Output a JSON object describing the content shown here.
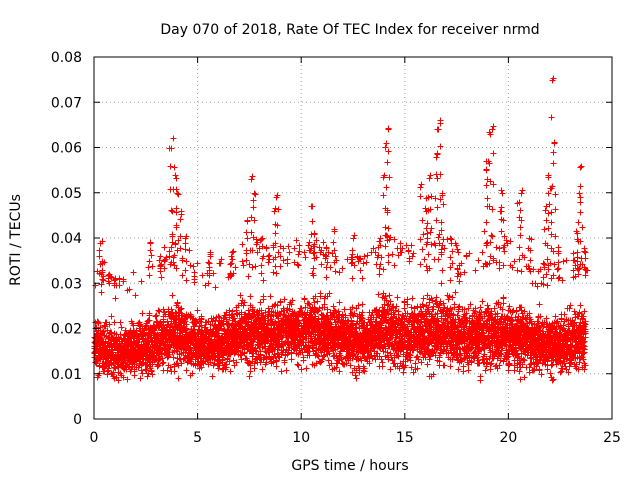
{
  "chart_data": {
    "type": "scatter",
    "title": "Day 070 of 2018, Rate Of TEC Index for receiver nrmd",
    "xlabel": "GPS time / hours",
    "ylabel": "ROTI / TECUs",
    "xlim": [
      0,
      25
    ],
    "ylim": [
      0,
      0.08
    ],
    "xticks": [
      0,
      5,
      10,
      15,
      20,
      25
    ],
    "yticks": [
      0,
      0.01,
      0.02,
      0.03,
      0.04,
      0.05,
      0.06,
      0.07,
      0.08
    ],
    "xtick_labels": [
      "0",
      "5",
      "10",
      "15",
      "20",
      "25"
    ],
    "ytick_labels": [
      "0",
      "0.01",
      "0.02",
      "0.03",
      "0.04",
      "0.05",
      "0.06",
      "0.07",
      "0.08"
    ],
    "grid": true,
    "marker": "plus",
    "series_color": "#ff0000",
    "x_range_of_data": [
      0,
      23.7
    ],
    "sample_step_hours": 0.02,
    "baseline_envelope": {
      "x": [
        0,
        1,
        2,
        3,
        4,
        5,
        6,
        7,
        8,
        9,
        10,
        11,
        12,
        13,
        14,
        15,
        16,
        17,
        18,
        19,
        20,
        21,
        22,
        23,
        23.7
      ],
      "median": [
        0.016,
        0.015,
        0.014,
        0.015,
        0.016,
        0.015,
        0.015,
        0.016,
        0.016,
        0.017,
        0.017,
        0.017,
        0.016,
        0.016,
        0.017,
        0.016,
        0.016,
        0.017,
        0.016,
        0.016,
        0.017,
        0.016,
        0.015,
        0.014,
        0.014
      ],
      "upper": [
        0.029,
        0.025,
        0.027,
        0.031,
        0.035,
        0.029,
        0.029,
        0.033,
        0.034,
        0.033,
        0.034,
        0.034,
        0.032,
        0.031,
        0.035,
        0.033,
        0.036,
        0.035,
        0.032,
        0.033,
        0.034,
        0.03,
        0.028,
        0.031,
        0.033
      ],
      "lower": [
        0.006,
        0.005,
        0.005,
        0.005,
        0.006,
        0.006,
        0.006,
        0.006,
        0.006,
        0.007,
        0.007,
        0.007,
        0.006,
        0.005,
        0.006,
        0.005,
        0.005,
        0.006,
        0.006,
        0.006,
        0.006,
        0.005,
        0.004,
        0.005,
        0.006
      ]
    },
    "spikes": [
      {
        "x": 0.3,
        "y": 0.039
      },
      {
        "x": 0.4,
        "y": 0.035
      },
      {
        "x": 1.0,
        "y": 0.031
      },
      {
        "x": 2.7,
        "y": 0.039
      },
      {
        "x": 3.2,
        "y": 0.036
      },
      {
        "x": 3.7,
        "y": 0.06
      },
      {
        "x": 3.8,
        "y": 0.062
      },
      {
        "x": 3.9,
        "y": 0.054
      },
      {
        "x": 4.0,
        "y": 0.05
      },
      {
        "x": 4.2,
        "y": 0.046
      },
      {
        "x": 4.4,
        "y": 0.04
      },
      {
        "x": 5.6,
        "y": 0.037
      },
      {
        "x": 6.6,
        "y": 0.036
      },
      {
        "x": 7.4,
        "y": 0.044
      },
      {
        "x": 7.6,
        "y": 0.053
      },
      {
        "x": 7.7,
        "y": 0.05
      },
      {
        "x": 8.1,
        "y": 0.04
      },
      {
        "x": 8.7,
        "y": 0.046
      },
      {
        "x": 8.8,
        "y": 0.049
      },
      {
        "x": 10.5,
        "y": 0.047
      },
      {
        "x": 10.6,
        "y": 0.041
      },
      {
        "x": 11.2,
        "y": 0.038
      },
      {
        "x": 11.6,
        "y": 0.042
      },
      {
        "x": 12.5,
        "y": 0.04
      },
      {
        "x": 13.8,
        "y": 0.04
      },
      {
        "x": 14.0,
        "y": 0.054
      },
      {
        "x": 14.1,
        "y": 0.061
      },
      {
        "x": 14.2,
        "y": 0.064
      },
      {
        "x": 15.8,
        "y": 0.052
      },
      {
        "x": 16.0,
        "y": 0.046
      },
      {
        "x": 16.1,
        "y": 0.049
      },
      {
        "x": 16.2,
        "y": 0.054
      },
      {
        "x": 16.5,
        "y": 0.058
      },
      {
        "x": 16.6,
        "y": 0.064
      },
      {
        "x": 16.7,
        "y": 0.066
      },
      {
        "x": 16.8,
        "y": 0.05
      },
      {
        "x": 17.2,
        "y": 0.04
      },
      {
        "x": 17.6,
        "y": 0.034
      },
      {
        "x": 18.9,
        "y": 0.055
      },
      {
        "x": 19.0,
        "y": 0.057
      },
      {
        "x": 19.1,
        "y": 0.063
      },
      {
        "x": 19.2,
        "y": 0.064
      },
      {
        "x": 19.6,
        "y": 0.046
      },
      {
        "x": 19.7,
        "y": 0.05
      },
      {
        "x": 20.5,
        "y": 0.048
      },
      {
        "x": 20.6,
        "y": 0.05
      },
      {
        "x": 21.0,
        "y": 0.04
      },
      {
        "x": 21.8,
        "y": 0.047
      },
      {
        "x": 21.9,
        "y": 0.054
      },
      {
        "x": 22.0,
        "y": 0.051
      },
      {
        "x": 22.1,
        "y": 0.075
      },
      {
        "x": 22.2,
        "y": 0.061
      },
      {
        "x": 22.4,
        "y": 0.038
      },
      {
        "x": 23.3,
        "y": 0.041
      },
      {
        "x": 23.4,
        "y": 0.05
      },
      {
        "x": 23.5,
        "y": 0.056
      },
      {
        "x": 23.7,
        "y": 0.037
      }
    ]
  }
}
